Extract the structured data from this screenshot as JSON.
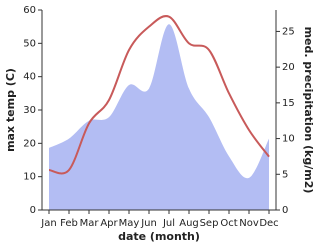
{
  "chart_data": {
    "type": "line-area",
    "x_label": "date (month)",
    "y_label": "max temp (C)",
    "y2_label": "med. precipitation (kg/m2)",
    "categories": [
      "Jan",
      "Feb",
      "Mar",
      "Apr",
      "May",
      "Jun",
      "Jul",
      "Aug",
      "Sep",
      "Oct",
      "Nov",
      "Dec"
    ],
    "series": [
      {
        "name": "max temp",
        "color": "#c85a5a",
        "values": [
          12,
          12,
          26,
          33,
          48,
          55,
          58,
          50,
          48,
          35,
          24,
          16
        ]
      },
      {
        "name": "med. precipitation",
        "color": "#b3bdf3",
        "axis": "y2",
        "values": [
          8.7,
          10,
          12.5,
          13,
          17.5,
          17,
          26,
          17,
          13,
          7.5,
          4.5,
          10
        ]
      }
    ],
    "ylim": [
      0,
      60
    ],
    "yticks": [
      0,
      10,
      20,
      30,
      40,
      50,
      60
    ],
    "y2lim": [
      0,
      28
    ],
    "y2ticks": [
      0,
      5,
      10,
      15,
      20,
      25
    ]
  }
}
